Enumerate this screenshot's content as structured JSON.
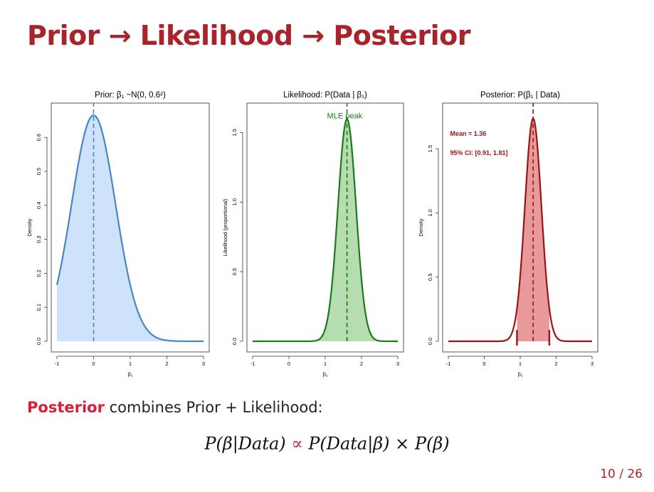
{
  "slide": {
    "title": "Prior → Likelihood → Posterior",
    "caption_highlight": "Posterior",
    "caption_rest": " combines Prior + Likelihood:",
    "formula": {
      "lhs": "P(β|Data)",
      "relation": "∝",
      "rhs": "P(Data|β) × P(β)"
    },
    "page": "10 / 26"
  },
  "colors": {
    "title": "#a8242a",
    "highlight": "#d6203a",
    "prior_line": "#4a86c4",
    "prior_fill": "#cfe2fb",
    "likelihood_line": "#1b7a1b",
    "likelihood_fill": "#b5ddb0",
    "posterior_line": "#9b1414",
    "posterior_fill": "#e89a9a"
  },
  "chart_data": [
    {
      "type": "area",
      "title": "Prior: β₁ ~N(0, 0.6²)",
      "xlabel": "β₁",
      "ylabel": "Density",
      "xlim": [
        -1,
        3
      ],
      "ylim": [
        0,
        0.68
      ],
      "xticks": [
        -1,
        0,
        1,
        2,
        3
      ],
      "yticks": [
        0.0,
        0.1,
        0.2,
        0.3,
        0.4,
        0.5,
        0.6
      ],
      "ytick_labels": [
        "0.0",
        "0.1",
        "0.2",
        "0.3",
        "0.4",
        "0.5",
        "0.6"
      ],
      "distribution": {
        "mean": 0,
        "sd": 0.6,
        "scale": 1
      },
      "curve_range": [
        -1,
        3
      ],
      "fill_range": [
        -1,
        3
      ],
      "reference_line": 0,
      "annotations": []
    },
    {
      "type": "area",
      "title": "Likelihood: P(Data | β₁)",
      "xlabel": "β₁",
      "ylabel": "Likelihood (proportional)",
      "xlim": [
        -1,
        3
      ],
      "ylim": [
        0,
        1.66
      ],
      "xticks": [
        -1,
        0,
        1,
        2,
        3
      ],
      "yticks": [
        0.0,
        0.5,
        1.0,
        1.5
      ],
      "ytick_labels": [
        "0.0",
        "0.5",
        "1.0",
        "1.5"
      ],
      "distribution": {
        "mean": 1.6,
        "sd": 0.25,
        "scale": 1
      },
      "curve_range": [
        -1,
        3
      ],
      "fill_range": [
        -1,
        3
      ],
      "reference_line": 1.6,
      "annotations": [
        {
          "text": "MLE peak",
          "x": 1.05,
          "y": 1.6
        }
      ]
    },
    {
      "type": "area",
      "title": "Posterior: P(β₁ | Data)",
      "xlabel": "β₁",
      "ylabel": "Density",
      "xlim": [
        -1,
        3
      ],
      "ylim": [
        0,
        1.8
      ],
      "xticks": [
        -1,
        0,
        1,
        2,
        3
      ],
      "yticks": [
        0.0,
        0.5,
        1.0,
        1.5
      ],
      "ytick_labels": [
        "0.0",
        "0.5",
        "1.0",
        "1.5"
      ],
      "distribution": {
        "mean": 1.36,
        "sd": 0.23,
        "scale": 1
      },
      "curve_range": [
        -1,
        3
      ],
      "fill_range": [
        0.91,
        1.81
      ],
      "reference_line": 1.36,
      "ci": [
        0.91,
        1.81
      ],
      "annotations": [
        {
          "text": "Mean = 1.36",
          "x": -0.95,
          "y": 1.6
        },
        {
          "text": "95% CI: [0.91, 1.81]",
          "x": -0.95,
          "y": 1.45
        }
      ]
    }
  ]
}
